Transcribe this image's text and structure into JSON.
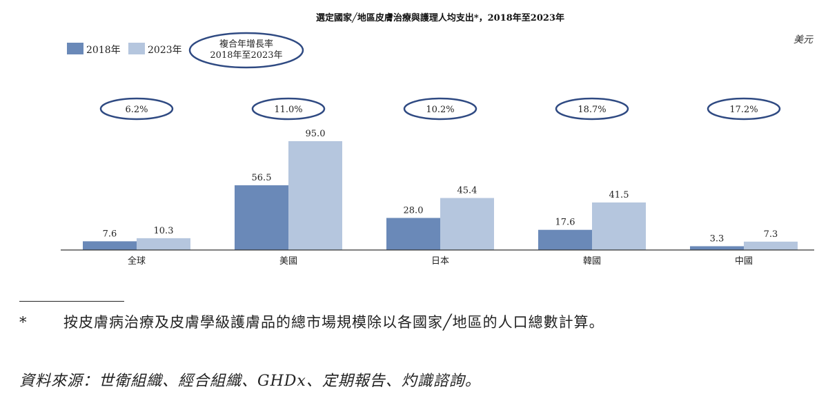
{
  "chart_data": {
    "type": "bar",
    "title": "選定國家╱地區皮膚治療與護理人均支出*，2018年至2023年",
    "unit": "美元",
    "categories": [
      "全球",
      "美國",
      "日本",
      "韓國",
      "中國"
    ],
    "series": [
      {
        "name": "2018年",
        "values": [
          7.6,
          56.5,
          28.0,
          17.6,
          3.3
        ]
      },
      {
        "name": "2023年",
        "values": [
          10.3,
          95.0,
          45.4,
          41.5,
          7.3
        ]
      }
    ],
    "data_labels": [
      [
        "7.6",
        "56.5",
        "28.0",
        "17.6",
        "3.3"
      ],
      [
        "10.3",
        "95.0",
        "45.4",
        "41.5",
        "7.3"
      ]
    ],
    "cagr_label": "複合年增長率 2018年至2023年",
    "cagr_label_lines": [
      "複合年增長率",
      "2018年至2023年"
    ],
    "cagr": [
      "6.2%",
      "11.0%",
      "10.2%",
      "18.7%",
      "17.2%"
    ],
    "ylim": [
      0,
      100
    ],
    "grid": false,
    "legend_position": "top-left",
    "colors": {
      "series_2018": "#6a89b8",
      "series_2023": "#b5c6de",
      "oval_stroke": "#2f4a82"
    }
  },
  "footnote": {
    "marker": "*",
    "text": "按皮膚病治療及皮膚學級護膚品的總市場規模除以各國家╱地區的人口總數計算。"
  },
  "source": "資料來源：世衛組織、經合組織、GHDx、定期報告、灼識諮詢。"
}
